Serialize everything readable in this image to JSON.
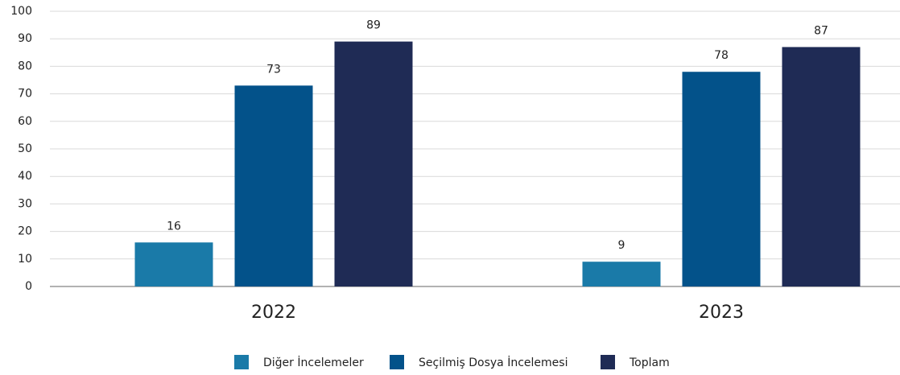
{
  "chart_data": {
    "type": "bar",
    "categories": [
      "2022",
      "2023"
    ],
    "series": [
      {
        "name": "Diğer İncelemeler",
        "color": "#1a7aa8",
        "values": [
          16,
          9
        ]
      },
      {
        "name": "Seçilmiş Dosya İncelemesi",
        "color": "#03528a",
        "values": [
          73,
          78
        ]
      },
      {
        "name": "Toplam",
        "color": "#1f2b55",
        "values": [
          89,
          87
        ]
      }
    ],
    "ylim": [
      0,
      100
    ],
    "yticks": [
      0,
      10,
      20,
      30,
      40,
      50,
      60,
      70,
      80,
      90,
      100
    ],
    "grid": true,
    "legend": "bottom"
  }
}
